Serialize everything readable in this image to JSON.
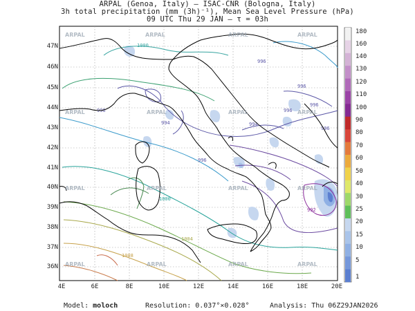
{
  "header": {
    "line1": "ARPAL (Genoa, Italy)  –  ISAC-CNR (Bologna, Italy)",
    "line2": "3h total precipitation (mm (3h)⁻¹), Mean Sea Level Pressure (hPa)",
    "line3": "09 UTC Thu 29 JAN   –   τ = 03h"
  },
  "map": {
    "lat_labels": [
      "47N",
      "46N",
      "45N",
      "44N",
      "43N",
      "42N",
      "41N",
      "40N",
      "39N",
      "38N",
      "37N",
      "36N"
    ],
    "lon_labels": [
      "4E",
      "6E",
      "8E",
      "10E",
      "12E",
      "14E",
      "16E",
      "18E",
      "20E"
    ],
    "watermark": "ARPAL",
    "isobar_labels": [
      "996",
      "996",
      "996",
      "994",
      "996",
      "994",
      "996",
      "996",
      "996",
      "992",
      "1000",
      "1000",
      "1004",
      "1008"
    ]
  },
  "colorbar": {
    "labels": [
      "180",
      "160",
      "140",
      "130",
      "120",
      "110",
      "100",
      "90",
      "80",
      "70",
      "60",
      "50",
      "40",
      "30",
      "25",
      "20",
      "15",
      "10",
      "5",
      "1"
    ],
    "colors": [
      "#f2f2f2",
      "#e6d3e6",
      "#d4b3d6",
      "#c38fc9",
      "#b06ab9",
      "#9a43a6",
      "#842a92",
      "#c02a2a",
      "#d8463a",
      "#e47a3c",
      "#ecaa3c",
      "#f0d24a",
      "#dfe86a",
      "#9ed86a",
      "#5fbf5a",
      "#c6d7ef",
      "#a9c4ea",
      "#8fb0e4",
      "#7598db",
      "#5b7fd0"
    ]
  },
  "footer": {
    "model_label": "Model:",
    "model_value": "moloch",
    "resolution": "Resolution: 0.037°×0.028°",
    "analysis": "Analysis: Thu 06Z29JAN2026"
  }
}
